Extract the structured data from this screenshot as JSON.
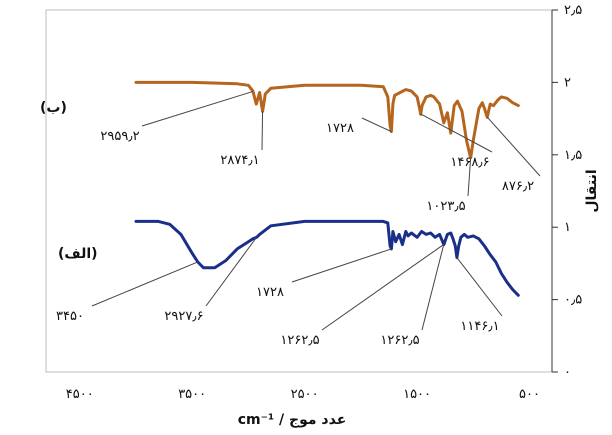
{
  "chart_data": {
    "type": "line",
    "xlabel": "cm⁻¹ / عدد موج",
    "ylabel": "انتقال",
    "xlim": [
      4800,
      300
    ],
    "ylim": [
      0,
      2.5
    ],
    "x_ticks": [
      {
        "value": 4500,
        "label": "۴۵۰۰"
      },
      {
        "value": 3500,
        "label": "۳۵۰۰"
      },
      {
        "value": 2500,
        "label": "۲۵۰۰"
      },
      {
        "value": 1500,
        "label": "۱۵۰۰"
      },
      {
        "value": 500,
        "label": "۵۰۰"
      }
    ],
    "y_ticks": [
      {
        "value": 0,
        "label": "۰"
      },
      {
        "value": 0.5,
        "label": "۰٫۵"
      },
      {
        "value": 1,
        "label": "۱"
      },
      {
        "value": 1.5,
        "label": "۱٫۵"
      },
      {
        "value": 2,
        "label": "۲"
      },
      {
        "value": 2.5,
        "label": "۲٫۵"
      }
    ],
    "grid": false,
    "series": [
      {
        "name": "(ب)",
        "color": "#b5651d",
        "x": [
          4000,
          3500,
          3100,
          3000,
          2960,
          2930,
          2900,
          2874,
          2850,
          2800,
          2500,
          2000,
          1800,
          1760,
          1740,
          1728,
          1715,
          1700,
          1650,
          1600,
          1550,
          1500,
          1480,
          1468,
          1455,
          1420,
          1380,
          1350,
          1300,
          1262,
          1230,
          1200,
          1170,
          1140,
          1100,
          1060,
          1030,
          1023,
          1000,
          950,
          920,
          900,
          876,
          850,
          820,
          780,
          750,
          700,
          650,
          600
        ],
        "y": [
          2.0,
          2.0,
          1.99,
          1.98,
          1.94,
          1.85,
          1.93,
          1.8,
          1.92,
          1.96,
          1.98,
          1.98,
          1.97,
          1.9,
          1.7,
          1.66,
          1.85,
          1.91,
          1.93,
          1.95,
          1.94,
          1.9,
          1.83,
          1.78,
          1.84,
          1.9,
          1.91,
          1.9,
          1.85,
          1.72,
          1.79,
          1.65,
          1.84,
          1.87,
          1.8,
          1.6,
          1.5,
          1.48,
          1.6,
          1.82,
          1.86,
          1.82,
          1.76,
          1.85,
          1.84,
          1.88,
          1.9,
          1.89,
          1.86,
          1.84
        ]
      },
      {
        "name": "(الف)",
        "color": "#1a2f8a",
        "x": [
          4000,
          3800,
          3700,
          3600,
          3500,
          3450,
          3400,
          3300,
          3200,
          3100,
          3000,
          2960,
          2927,
          2900,
          2850,
          2800,
          2500,
          2000,
          1800,
          1760,
          1740,
          1728,
          1715,
          1690,
          1660,
          1630,
          1600,
          1580,
          1550,
          1500,
          1460,
          1420,
          1380,
          1340,
          1300,
          1262,
          1230,
          1200,
          1180,
          1160,
          1146,
          1130,
          1110,
          1080,
          1050,
          1000,
          950,
          900,
          850,
          800,
          750,
          700,
          650,
          600
        ],
        "y": [
          1.04,
          1.04,
          1.02,
          0.95,
          0.82,
          0.76,
          0.72,
          0.72,
          0.77,
          0.85,
          0.9,
          0.92,
          0.93,
          0.95,
          0.98,
          1.01,
          1.04,
          1.04,
          1.04,
          1.03,
          0.87,
          0.85,
          0.97,
          0.9,
          0.95,
          0.88,
          0.97,
          0.94,
          0.96,
          0.93,
          0.97,
          0.95,
          0.96,
          0.93,
          0.95,
          0.88,
          0.95,
          0.96,
          0.92,
          0.87,
          0.79,
          0.87,
          0.93,
          0.95,
          0.93,
          0.94,
          0.92,
          0.87,
          0.81,
          0.76,
          0.68,
          0.62,
          0.57,
          0.53
        ]
      }
    ],
    "series_labels": [
      {
        "text": "(ب)",
        "series": 0
      },
      {
        "text": "(الف)",
        "series": 1
      }
    ],
    "annotations": [
      {
        "text": "۲۹۵۹٫۲",
        "x": 2959.2,
        "series": 0
      },
      {
        "text": "۲۸۷۴٫۱",
        "x": 2874.1,
        "series": 0
      },
      {
        "text": "۱۷۲۸",
        "x": 1728,
        "series": 0
      },
      {
        "text": "۱۴۶۸٫۶",
        "x": 1468.6,
        "series": 0
      },
      {
        "text": "۱۰۲۳٫۵",
        "x": 1023.5,
        "series": 0
      },
      {
        "text": "۸۷۶٫۲",
        "x": 876.2,
        "series": 0
      },
      {
        "text": "۳۴۵۰",
        "x": 3450,
        "series": 1
      },
      {
        "text": "۲۹۲۷٫۶",
        "x": 2927.6,
        "series": 1
      },
      {
        "text": "۱۷۲۸",
        "x": 1728,
        "series": 1
      },
      {
        "text": "۱۲۶۲٫۵",
        "x": 1262.5,
        "series": 1
      },
      {
        "text": "۱۲۶۲٫۵",
        "x": 1262.5,
        "series": 1
      },
      {
        "text": "۱۱۴۶٫۱",
        "x": 1146.1,
        "series": 1
      }
    ]
  }
}
